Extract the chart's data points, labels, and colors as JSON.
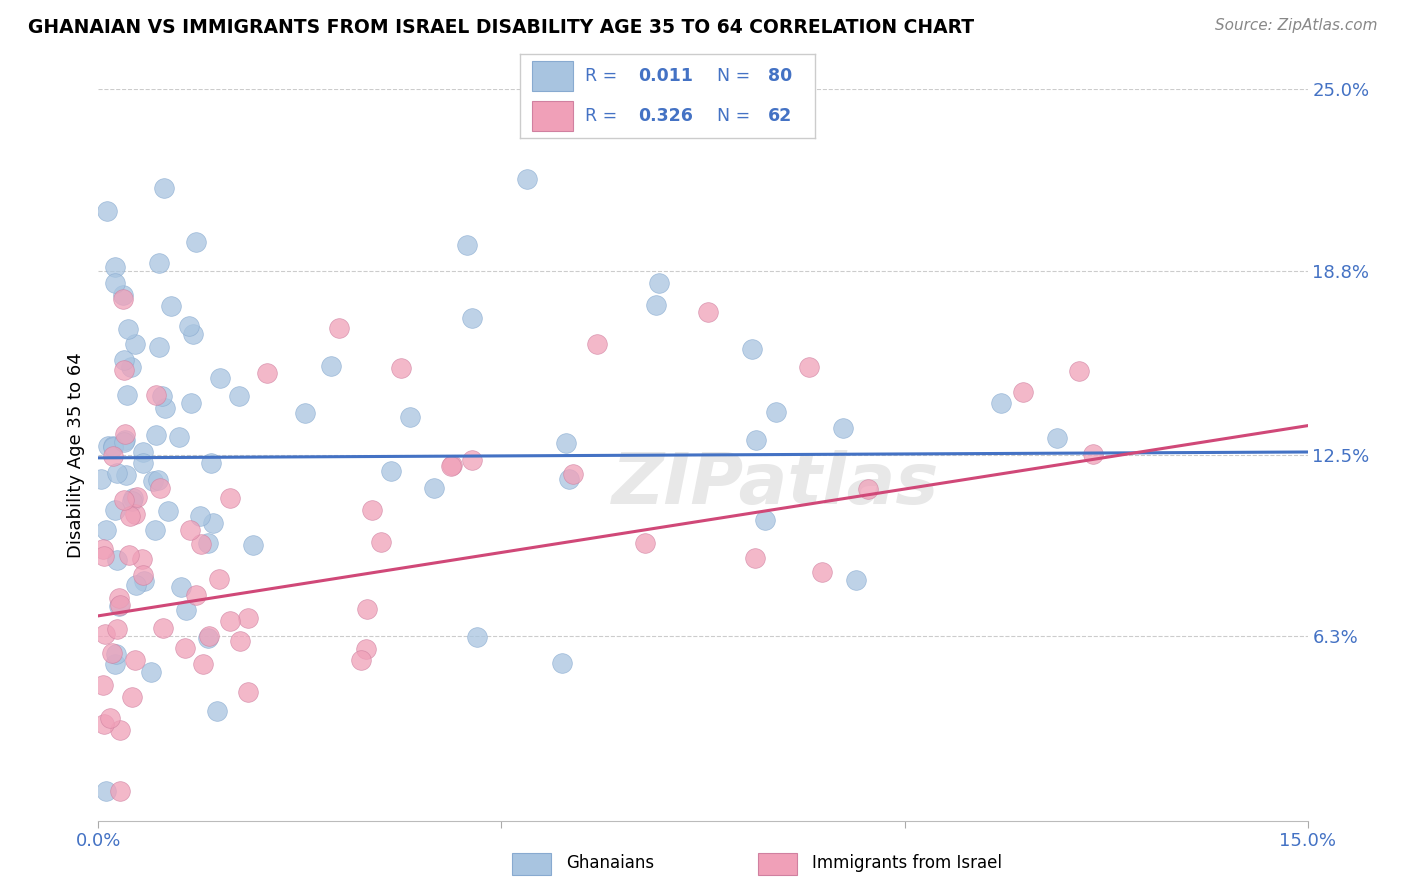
{
  "title": "GHANAIAN VS IMMIGRANTS FROM ISRAEL DISABILITY AGE 35 TO 64 CORRELATION CHART",
  "source": "Source: ZipAtlas.com",
  "ylabel_label": "Disability Age 35 to 64",
  "x_min": 0.0,
  "x_max": 0.15,
  "y_min": 0.0,
  "y_max": 0.25,
  "y_ticks_right": [
    0.063,
    0.125,
    0.188,
    0.25
  ],
  "y_tick_labels_right": [
    "6.3%",
    "12.5%",
    "18.8%",
    "25.0%"
  ],
  "blue_color": "#a8c4e0",
  "pink_color": "#f0a0b8",
  "blue_line_color": "#4472c4",
  "pink_line_color": "#d04878",
  "grid_color": "#cccccc",
  "blue_line_start_y": 0.124,
  "blue_line_end_y": 0.126,
  "pink_line_start_y": 0.07,
  "pink_line_end_y": 0.135
}
